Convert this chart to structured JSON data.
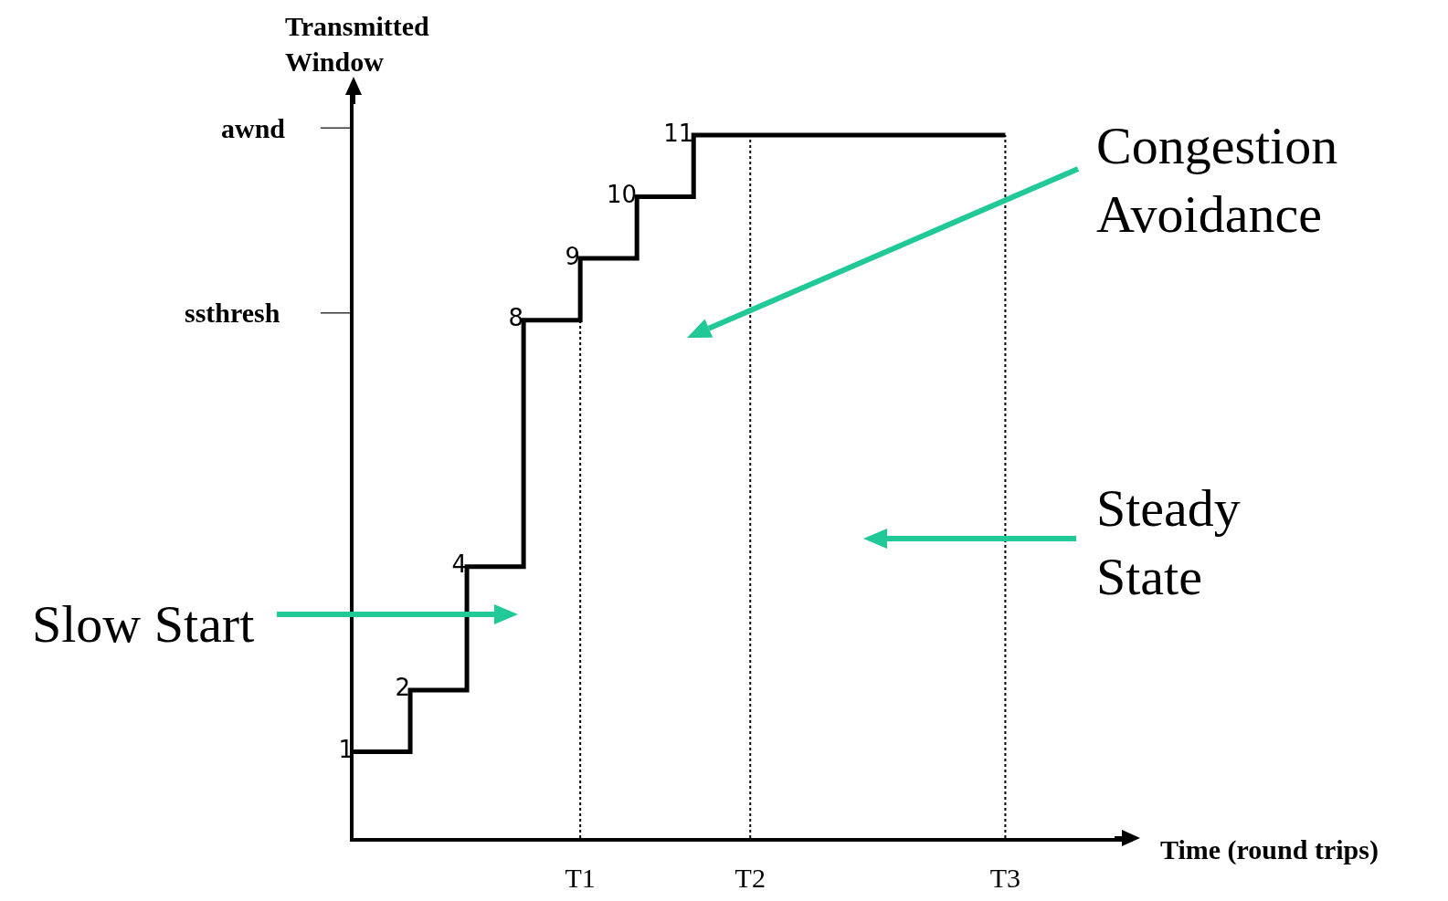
{
  "chart_data": {
    "type": "step",
    "ylabel": "Transmitted Window",
    "categories": [
      null,
      null,
      null,
      null,
      null,
      null,
      null,
      null,
      "T1",
      null,
      null,
      null,
      null,
      null,
      "T2",
      null,
      null,
      null,
      null,
      null,
      null,
      null,
      null,
      "T3"
    ],
    "values": [
      1,
      1,
      2,
      2,
      4,
      4,
      8,
      8,
      9,
      9,
      10,
      10,
      11,
      11,
      11,
      11,
      11,
      11,
      11,
      11,
      11,
      11,
      11,
      11
    ],
    "value_labels": [
      "1",
      null,
      "2",
      null,
      "4",
      null,
      "8",
      null,
      "9",
      null,
      "10",
      null,
      "11",
      null,
      null,
      null,
      null,
      null,
      null,
      null,
      null,
      null,
      null,
      null
    ],
    "color": "#000000",
    "ylim": [
      -0.4,
      11.8
    ],
    "ref_lines": [
      {
        "axis": "x",
        "value": "T1",
        "line_style": "dotted"
      },
      {
        "axis": "x",
        "value": "T2",
        "line_style": "dotted"
      },
      {
        "axis": "x",
        "value": "T3",
        "line_style": "dotted"
      }
    ],
    "annotations": [
      "ssthresh",
      "awnd",
      "Slow Start",
      "Congestion Avoidance",
      "Steady State",
      "Time (round trips)"
    ],
    "grid": false
  }
}
